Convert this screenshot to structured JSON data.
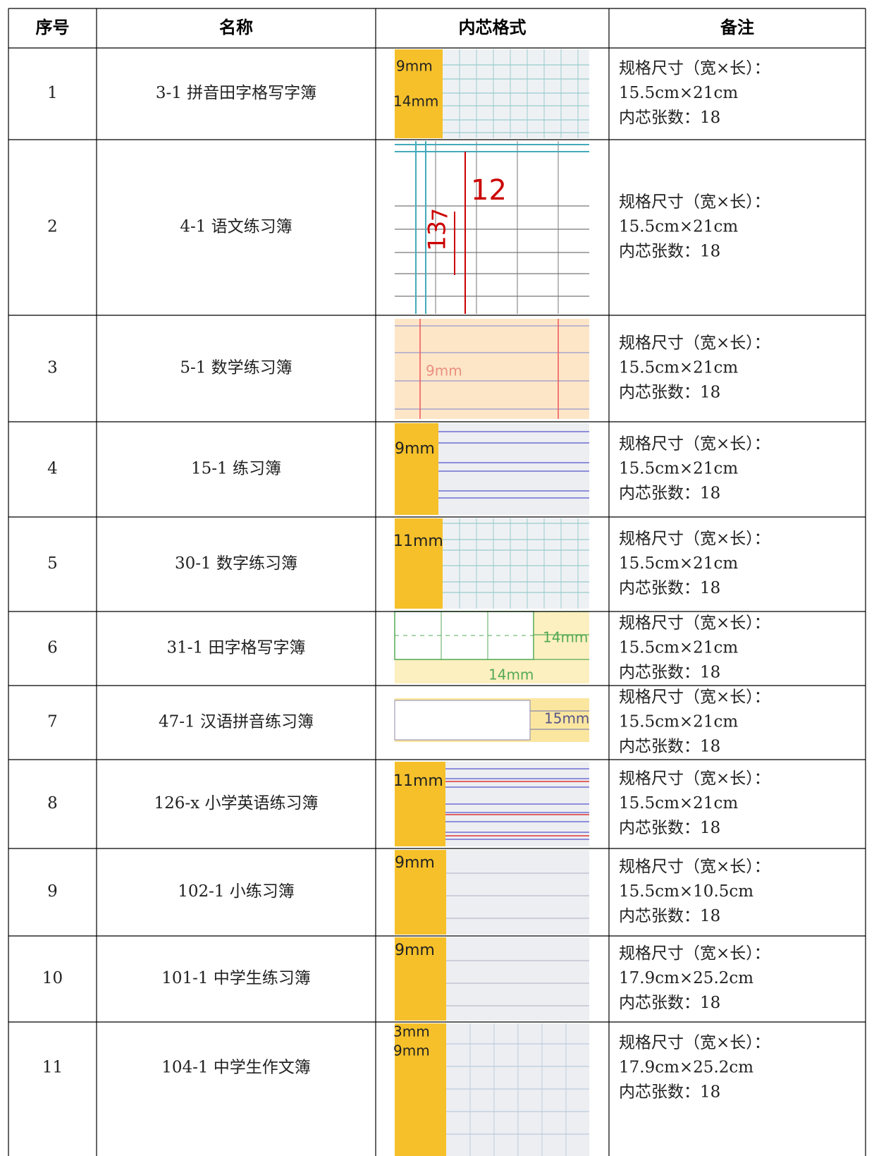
{
  "table": {
    "headers": [
      "序号",
      "名称",
      "内芯格式",
      "备注"
    ],
    "rows": [
      {
        "no": "1",
        "name": "3-1 拼音田字格写字簿",
        "image_labels": [
          "9mm",
          "14mm"
        ],
        "notes": [
          "规格尺寸（宽×长）：",
          "15.5cm×21cm",
          "内芯张数：18"
        ]
      },
      {
        "no": "2",
        "name": "4-1 语文练习簿",
        "image_labels": [
          "12",
          "13",
          "7"
        ],
        "notes": [
          "规格尺寸（宽×长）：",
          "15.5cm×21cm",
          "内芯张数：18"
        ]
      },
      {
        "no": "3",
        "name": "5-1 数学练习簿",
        "image_labels": [
          "9mm"
        ],
        "notes": [
          "规格尺寸（宽×长）：",
          "15.5cm×21cm",
          "内芯张数：18"
        ]
      },
      {
        "no": "4",
        "name": "15-1 练习簿",
        "image_labels": [
          "9mm"
        ],
        "notes": [
          "规格尺寸（宽×长）：",
          "15.5cm×21cm",
          "内芯张数：18"
        ]
      },
      {
        "no": "5",
        "name": "30-1 数字练习簿",
        "image_labels": [
          "11mm"
        ],
        "notes": [
          "规格尺寸（宽×长）：",
          "15.5cm×21cm",
          "内芯张数：18"
        ]
      },
      {
        "no": "6",
        "name": "31-1 田字格写字簿",
        "image_labels": [
          "14mm",
          "14mm"
        ],
        "notes": [
          "规格尺寸（宽×长）：",
          "15.5cm×21cm",
          "内芯张数：18"
        ]
      },
      {
        "no": "7",
        "name": "47-1 汉语拼音练习簿",
        "image_labels": [
          "15mm"
        ],
        "notes": [
          "规格尺寸（宽×长）：",
          "15.5cm×21cm",
          "内芯张数：18"
        ]
      },
      {
        "no": "8",
        "name": "126-x 小学英语练习簿",
        "image_labels": [
          "11mm"
        ],
        "notes": [
          "规格尺寸（宽×长）：",
          "15.5cm×21cm",
          "内芯张数：18"
        ]
      },
      {
        "no": "9",
        "name": "102-1 小练习簿",
        "image_labels": [
          "9mm"
        ],
        "notes": [
          "规格尺寸（宽×长）：",
          "15.5cm×10.5cm",
          "内芯张数：18"
        ]
      },
      {
        "no": "10",
        "name": "101-1 中学生练习簿",
        "image_labels": [
          "9mm"
        ],
        "notes": [
          "规格尺寸（宽×长）：",
          "17.9cm×25.2cm",
          "内芯张数：18"
        ]
      },
      {
        "no": "11",
        "name": "104-1 中学生作文簿",
        "image_labels": [
          "3mm",
          "9mm"
        ],
        "notes": [
          "规格尺寸（宽×长）：",
          "17.9cm×25.2cm",
          "内芯张数：18"
        ]
      }
    ]
  }
}
